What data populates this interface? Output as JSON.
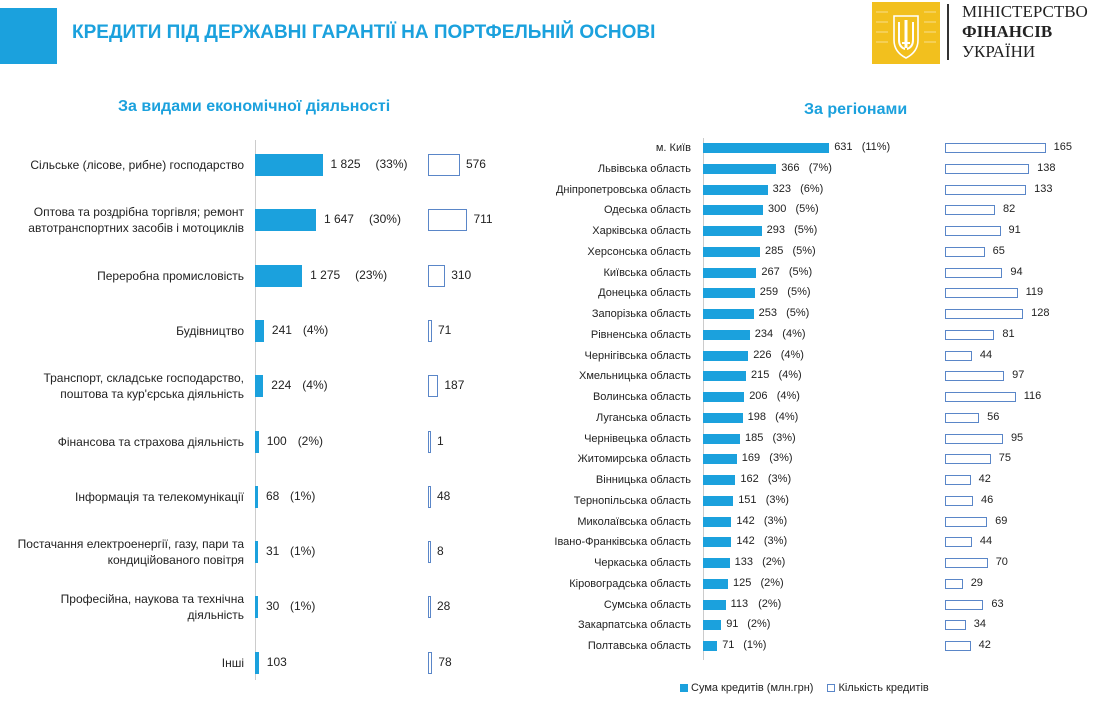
{
  "header": {
    "title": "КРЕДИТИ ПІД ДЕРЖАВНІ ГАРАНТІЇ НА ПОРТФЕЛЬНІЙ ОСНОВІ",
    "ministry_line1": "МІНІСТЕРСТВО",
    "ministry_line2": "ФІНАНСІВ",
    "ministry_line3": "УКРАЇНИ",
    "accent_color": "#1ba1dd",
    "logo_color": "#f2c01e",
    "logo_icon": "trident-coat-of-arms-icon"
  },
  "legend": {
    "sum_label": "Сума кредитів (млн.грн)",
    "count_label": "Кількість кредитів"
  },
  "chart_data": [
    {
      "type": "bar",
      "orientation": "horizontal",
      "title": "За видами економічної діяльності",
      "categories": [
        "Сільське (лісове, рибне) господарство",
        "Оптова та роздрібна торгівля; ремонт автотранспортних засобів і мотоциклів",
        "Переробна промисловість",
        "Будівництво",
        "Транспорт, складське господарство, поштова та кур'єрська діяльність",
        "Фінансова та страхова діяльність",
        "Інформація та телекомунікації",
        "Постачання електроенергії, газу, пари та кондиційованого повітря",
        "Професійна, наукова та технічна діяльність",
        "Інші"
      ],
      "series": [
        {
          "name": "Сума кредитів (млн.грн)",
          "values": [
            1825,
            1647,
            1275,
            241,
            224,
            100,
            68,
            31,
            30,
            103
          ],
          "labels": [
            "1 825",
            "1 647",
            "1 275",
            "241",
            "224",
            "100",
            "68",
            "31",
            "30",
            "103"
          ],
          "shares": [
            "(33%)",
            "(30%)",
            "(23%)",
            "(4%)",
            "(4%)",
            "(2%)",
            "(1%)",
            "(1%)",
            "(1%)",
            ""
          ]
        },
        {
          "name": "Кількість кредитів",
          "values": [
            576,
            711,
            310,
            71,
            187,
            1,
            48,
            8,
            28,
            78
          ]
        }
      ]
    },
    {
      "type": "bar",
      "orientation": "horizontal",
      "title": "За регіонами",
      "categories": [
        "м. Київ",
        "Львівська область",
        "Дніпропетровська область",
        "Одеська область",
        "Харківська область",
        "Херсонська область",
        "Київська область",
        "Донецька область",
        "Запорізька область",
        "Рівненська область",
        "Чернігівська область",
        "Хмельницька область",
        "Волинська область",
        "Луганська область",
        "Чернівецька область",
        "Житомирська область",
        "Вінницька область",
        "Тернопільська область",
        "Миколаївська область",
        "Івано-Франківська область",
        "Черкаська область",
        "Кіровоградська область",
        "Сумська область",
        "Закарпатська область",
        "Полтавська область"
      ],
      "series": [
        {
          "name": "Сума кредитів (млн.грн)",
          "values": [
            631,
            366,
            323,
            300,
            293,
            285,
            267,
            259,
            253,
            234,
            226,
            215,
            206,
            198,
            185,
            169,
            162,
            151,
            142,
            142,
            133,
            125,
            113,
            91,
            71
          ],
          "shares": [
            "(11%)",
            "(7%)",
            "(6%)",
            "(5%)",
            "(5%)",
            "(5%)",
            "(5%)",
            "(5%)",
            "(5%)",
            "(4%)",
            "(4%)",
            "(4%)",
            "(4%)",
            "(4%)",
            "(3%)",
            "(3%)",
            "(3%)",
            "(3%)",
            "(3%)",
            "(3%)",
            "(2%)",
            "(2%)",
            "(2%)",
            "(2%)",
            "(1%)"
          ]
        },
        {
          "name": "Кількість кредитів",
          "values": [
            165,
            138,
            133,
            82,
            91,
            65,
            94,
            119,
            128,
            81,
            44,
            97,
            116,
            56,
            95,
            75,
            42,
            46,
            69,
            44,
            70,
            29,
            63,
            34,
            42
          ]
        }
      ]
    }
  ]
}
